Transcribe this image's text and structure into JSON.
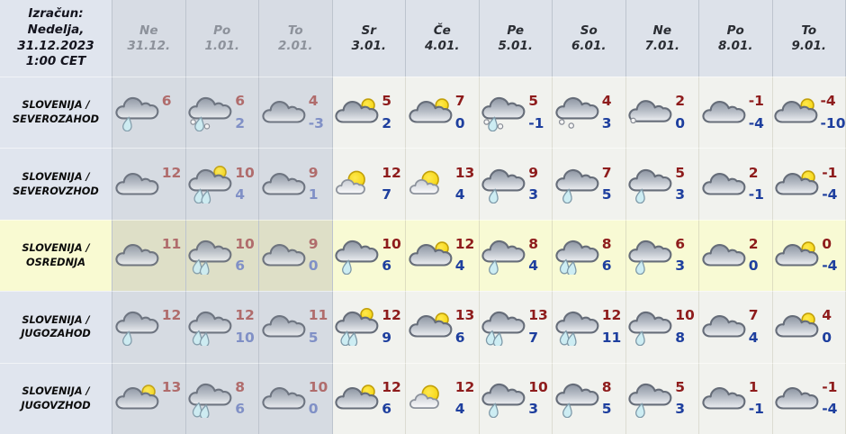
{
  "header": {
    "calc_lines": [
      "Izračun:",
      "Nedelja,",
      "31.12.2023",
      "1:00 CET"
    ],
    "days": [
      {
        "name": "Ne",
        "date": "31.12.",
        "muted": true
      },
      {
        "name": "Po",
        "date": "1.01.",
        "muted": true
      },
      {
        "name": "To",
        "date": "2.01.",
        "muted": true
      },
      {
        "name": "Sr",
        "date": "3.01.",
        "muted": false
      },
      {
        "name": "Če",
        "date": "4.01.",
        "muted": false
      },
      {
        "name": "Pe",
        "date": "5.01.",
        "muted": false
      },
      {
        "name": "So",
        "date": "6.01.",
        "muted": false
      },
      {
        "name": "Ne",
        "date": "7.01.",
        "muted": false
      },
      {
        "name": "Po",
        "date": "8.01.",
        "muted": false
      },
      {
        "name": "To",
        "date": "9.01.",
        "muted": false
      }
    ]
  },
  "rows": [
    {
      "region": [
        "SLOVENIJA /",
        "SEVEROZAHOD"
      ],
      "highlight": false,
      "cells": [
        {
          "icon": "rain-cloud",
          "hi": 6,
          "lo": null
        },
        {
          "icon": "sleet-cloud",
          "hi": 6,
          "lo": 2
        },
        {
          "icon": "cloud",
          "hi": 4,
          "lo": -3
        },
        {
          "icon": "cloud-sun",
          "hi": 5,
          "lo": 2
        },
        {
          "icon": "cloud-sun",
          "hi": 7,
          "lo": 0
        },
        {
          "icon": "sleet-cloud",
          "hi": 5,
          "lo": -1
        },
        {
          "icon": "snow-cloud",
          "hi": 4,
          "lo": 3
        },
        {
          "icon": "light-snow-cloud",
          "hi": 2,
          "lo": 0
        },
        {
          "icon": "cloud",
          "hi": -1,
          "lo": -4
        },
        {
          "icon": "cloud-sun",
          "hi": -4,
          "lo": -10
        }
      ]
    },
    {
      "region": [
        "SLOVENIJA /",
        "SEVEROVZHOD"
      ],
      "highlight": false,
      "cells": [
        {
          "icon": "cloud",
          "hi": 12,
          "lo": null
        },
        {
          "icon": "shower-sun-cloud",
          "hi": 10,
          "lo": 4
        },
        {
          "icon": "cloud",
          "hi": 9,
          "lo": 1
        },
        {
          "icon": "sun-cloud",
          "hi": 12,
          "lo": 7
        },
        {
          "icon": "sun-cloud",
          "hi": 13,
          "lo": 4
        },
        {
          "icon": "rain-cloud",
          "hi": 9,
          "lo": 3
        },
        {
          "icon": "rain-cloud",
          "hi": 7,
          "lo": 5
        },
        {
          "icon": "rain-cloud",
          "hi": 5,
          "lo": 3
        },
        {
          "icon": "cloud",
          "hi": 2,
          "lo": -1
        },
        {
          "icon": "cloud-sun",
          "hi": -1,
          "lo": -4
        }
      ]
    },
    {
      "region": [
        "SLOVENIJA /",
        "OSREDNJA"
      ],
      "highlight": true,
      "cells": [
        {
          "icon": "cloud",
          "hi": 11,
          "lo": null
        },
        {
          "icon": "rain2-cloud",
          "hi": 10,
          "lo": 6
        },
        {
          "icon": "cloud",
          "hi": 9,
          "lo": 0
        },
        {
          "icon": "rain-cloud",
          "hi": 10,
          "lo": 6
        },
        {
          "icon": "cloud-sun",
          "hi": 12,
          "lo": 4
        },
        {
          "icon": "rain-cloud",
          "hi": 8,
          "lo": 4
        },
        {
          "icon": "rain2-cloud",
          "hi": 8,
          "lo": 6
        },
        {
          "icon": "rain-cloud",
          "hi": 6,
          "lo": 3
        },
        {
          "icon": "cloud",
          "hi": 2,
          "lo": 0
        },
        {
          "icon": "cloud-sun",
          "hi": 0,
          "lo": -4
        }
      ]
    },
    {
      "region": [
        "SLOVENIJA /",
        "JUGOZAHOD"
      ],
      "highlight": false,
      "cells": [
        {
          "icon": "rain-cloud",
          "hi": 12,
          "lo": null
        },
        {
          "icon": "rain2-cloud",
          "hi": 12,
          "lo": 10
        },
        {
          "icon": "cloud",
          "hi": 11,
          "lo": 5
        },
        {
          "icon": "shower-sun-cloud",
          "hi": 12,
          "lo": 9
        },
        {
          "icon": "cloud-sun",
          "hi": 13,
          "lo": 6
        },
        {
          "icon": "rain2-cloud",
          "hi": 13,
          "lo": 7
        },
        {
          "icon": "rain2-cloud",
          "hi": 12,
          "lo": 11
        },
        {
          "icon": "rain-cloud",
          "hi": 10,
          "lo": 8
        },
        {
          "icon": "cloud",
          "hi": 7,
          "lo": 4
        },
        {
          "icon": "cloud-sun",
          "hi": 4,
          "lo": 0
        }
      ]
    },
    {
      "region": [
        "SLOVENIJA /",
        "JUGOVZHOD"
      ],
      "highlight": false,
      "cells": [
        {
          "icon": "cloud-sun",
          "hi": 13,
          "lo": null
        },
        {
          "icon": "rain2-cloud",
          "hi": 8,
          "lo": 6
        },
        {
          "icon": "cloud",
          "hi": 10,
          "lo": 0
        },
        {
          "icon": "cloud-sun",
          "hi": 12,
          "lo": 6
        },
        {
          "icon": "sun-cloud",
          "hi": 12,
          "lo": 4
        },
        {
          "icon": "rain-cloud",
          "hi": 10,
          "lo": 3
        },
        {
          "icon": "rain-cloud",
          "hi": 8,
          "lo": 5
        },
        {
          "icon": "rain-cloud",
          "hi": 5,
          "lo": 3
        },
        {
          "icon": "cloud",
          "hi": 1,
          "lo": -1
        },
        {
          "icon": "cloud",
          "hi": -1,
          "lo": -4
        }
      ]
    }
  ],
  "colors": {
    "temp_high": "#8e1c1c",
    "temp_low": "#1e3f9e",
    "temp_high_muted": "#b06c6c",
    "temp_low_muted": "#8090c6",
    "highlight_row_bg": "#f8fad4"
  }
}
